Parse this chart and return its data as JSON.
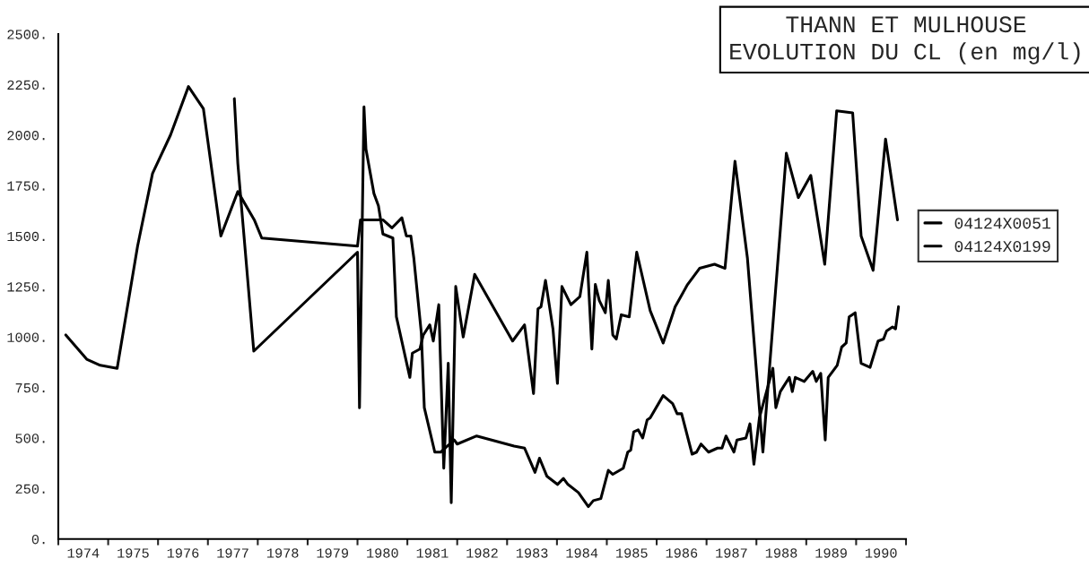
{
  "chart_data": {
    "type": "line",
    "title": "THANN ET MULHOUSE\nEVOLUTION DU CL (en mg/l)",
    "xlim": [
      1974,
      1991
    ],
    "xticks": [
      {
        "value": 1974,
        "label": null
      },
      {
        "value": 1974.5,
        "label": "1974"
      },
      {
        "value": 1975,
        "label": null
      },
      {
        "value": 1975.5,
        "label": "1975"
      },
      {
        "value": 1976,
        "label": null
      },
      {
        "value": 1976.5,
        "label": "1976"
      },
      {
        "value": 1977,
        "label": null
      },
      {
        "value": 1977.5,
        "label": "1977"
      },
      {
        "value": 1978,
        "label": null
      },
      {
        "value": 1978.5,
        "label": "1978"
      },
      {
        "value": 1979,
        "label": null
      },
      {
        "value": 1979.5,
        "label": "1979"
      },
      {
        "value": 1980,
        "label": null
      },
      {
        "value": 1980.5,
        "label": "1980"
      },
      {
        "value": 1981,
        "label": null
      },
      {
        "value": 1981.5,
        "label": "1981"
      },
      {
        "value": 1982,
        "label": null
      },
      {
        "value": 1982.5,
        "label": "1982"
      },
      {
        "value": 1983,
        "label": null
      },
      {
        "value": 1983.5,
        "label": "1983"
      },
      {
        "value": 1984,
        "label": null
      },
      {
        "value": 1984.5,
        "label": "1984"
      },
      {
        "value": 1985,
        "label": null
      },
      {
        "value": 1985.5,
        "label": "1985"
      },
      {
        "value": 1986,
        "label": null
      },
      {
        "value": 1986.5,
        "label": "1986"
      },
      {
        "value": 1987,
        "label": null
      },
      {
        "value": 1987.5,
        "label": "1987"
      },
      {
        "value": 1988,
        "label": null
      },
      {
        "value": 1988.5,
        "label": "1988"
      },
      {
        "value": 1989,
        "label": null
      },
      {
        "value": 1989.5,
        "label": "1989"
      },
      {
        "value": 1990,
        "label": null
      },
      {
        "value": 1990.5,
        "label": "1990"
      },
      {
        "value": 1991,
        "label": null
      }
    ],
    "ylim": [
      0,
      2500
    ],
    "yticks": [
      {
        "value": 0,
        "label": "0."
      },
      {
        "value": 250,
        "label": "250."
      },
      {
        "value": 500,
        "label": "500."
      },
      {
        "value": 750,
        "label": "750."
      },
      {
        "value": 1000,
        "label": "1000."
      },
      {
        "value": 1250,
        "label": "1250."
      },
      {
        "value": 1500,
        "label": "1500."
      },
      {
        "value": 1750,
        "label": "1750."
      },
      {
        "value": 2000,
        "label": "2000."
      },
      {
        "value": 2250,
        "label": "2250."
      },
      {
        "value": 2500,
        "label": "2500."
      }
    ],
    "grid": false,
    "legend": "right",
    "marker": "none",
    "line_style": "solid",
    "series": [
      {
        "name": "04124X0051",
        "color": "#000000",
        "x": [
          1974.15,
          1974.57,
          1974.84,
          1975.18,
          1975.59,
          1975.89,
          1976.25,
          1976.61,
          1976.91,
          1977.26,
          1977.6,
          1977.93,
          1978.08,
          1980.0,
          1980.06,
          1980.51,
          1980.69,
          1980.89,
          1980.98,
          1981.07,
          1981.13,
          1981.28,
          1981.34,
          1981.55,
          1981.67,
          1981.76,
          1981.94,
          1982.0,
          1982.39,
          1983.14,
          1983.35,
          1983.56,
          1983.65,
          1983.8,
          1984.01,
          1984.13,
          1984.22,
          1984.43,
          1984.63,
          1984.73,
          1984.88,
          1985.03,
          1985.12,
          1985.33,
          1985.42,
          1985.48,
          1985.54,
          1985.63,
          1985.72,
          1985.81,
          1985.87,
          1986.13,
          1986.32,
          1986.41,
          1986.5,
          1986.71,
          1986.8,
          1986.89,
          1987.04,
          1987.22,
          1987.31,
          1987.39,
          1987.55,
          1987.61,
          1987.79,
          1987.87,
          1987.95,
          1988.06,
          1988.33,
          1988.39,
          1988.48,
          1988.66,
          1988.72,
          1988.78,
          1988.96,
          1989.13,
          1989.2,
          1989.29,
          1989.38,
          1989.44,
          1989.62,
          1989.71,
          1989.8,
          1989.86,
          1989.98,
          1990.1,
          1990.28,
          1990.44,
          1990.55,
          1990.61,
          1990.73,
          1990.79,
          1990.85
        ],
        "values": [
          1010,
          890,
          860,
          845,
          1450,
          1810,
          2000,
          2240,
          2130,
          1500,
          1720,
          1580,
          1490,
          1450,
          1580,
          1580,
          1540,
          1590,
          1500,
          1500,
          1390,
          1020,
          650,
          430,
          430,
          450,
          490,
          470,
          510,
          460,
          450,
          330,
          400,
          310,
          270,
          300,
          270,
          230,
          160,
          190,
          200,
          340,
          320,
          350,
          430,
          440,
          530,
          540,
          500,
          590,
          600,
          710,
          670,
          620,
          620,
          420,
          430,
          470,
          430,
          450,
          450,
          510,
          430,
          490,
          500,
          570,
          370,
          600,
          845,
          650,
          730,
          800,
          730,
          800,
          780,
          830,
          780,
          820,
          490,
          800,
          860,
          950,
          970,
          1100,
          1120,
          870,
          850,
          980,
          990,
          1030,
          1050,
          1040,
          1150
        ]
      },
      {
        "name": "04124X0199",
        "color": "#000000",
        "x": [
          1977.53,
          1977.6,
          1977.92,
          1980.0,
          1980.04,
          1980.13,
          1980.17,
          1980.33,
          1980.42,
          1980.51,
          1980.71,
          1980.78,
          1981.05,
          1981.1,
          1981.25,
          1981.32,
          1981.45,
          1981.52,
          1981.63,
          1981.73,
          1981.82,
          1981.88,
          1981.97,
          1982.12,
          1982.35,
          1983.11,
          1983.35,
          1983.53,
          1983.62,
          1983.68,
          1983.77,
          1983.92,
          1984.01,
          1984.1,
          1984.28,
          1984.46,
          1984.6,
          1984.7,
          1984.77,
          1984.85,
          1984.97,
          1985.03,
          1985.12,
          1985.19,
          1985.29,
          1985.45,
          1985.6,
          1985.87,
          1986.13,
          1986.37,
          1986.62,
          1986.86,
          1987.16,
          1987.37,
          1987.57,
          1987.82,
          1988.13,
          1988.6,
          1988.84,
          1989.09,
          1989.37,
          1989.61,
          1989.93,
          1990.1,
          1990.34,
          1990.59,
          1990.83
        ],
        "values": [
          2180,
          1860,
          930,
          1420,
          650,
          2140,
          1930,
          1710,
          1650,
          1510,
          1490,
          1100,
          800,
          920,
          940,
          1010,
          1060,
          980,
          1160,
          350,
          870,
          180,
          1250,
          1000,
          1310,
          980,
          1060,
          720,
          1140,
          1150,
          1280,
          1040,
          770,
          1250,
          1160,
          1200,
          1420,
          940,
          1260,
          1180,
          1120,
          1280,
          1010,
          990,
          1110,
          1100,
          1420,
          1130,
          970,
          1150,
          1260,
          1340,
          1360,
          1340,
          1870,
          1390,
          430,
          1910,
          1690,
          1800,
          1360,
          2120,
          2110,
          1500,
          1330,
          1980,
          1580
        ]
      }
    ]
  }
}
